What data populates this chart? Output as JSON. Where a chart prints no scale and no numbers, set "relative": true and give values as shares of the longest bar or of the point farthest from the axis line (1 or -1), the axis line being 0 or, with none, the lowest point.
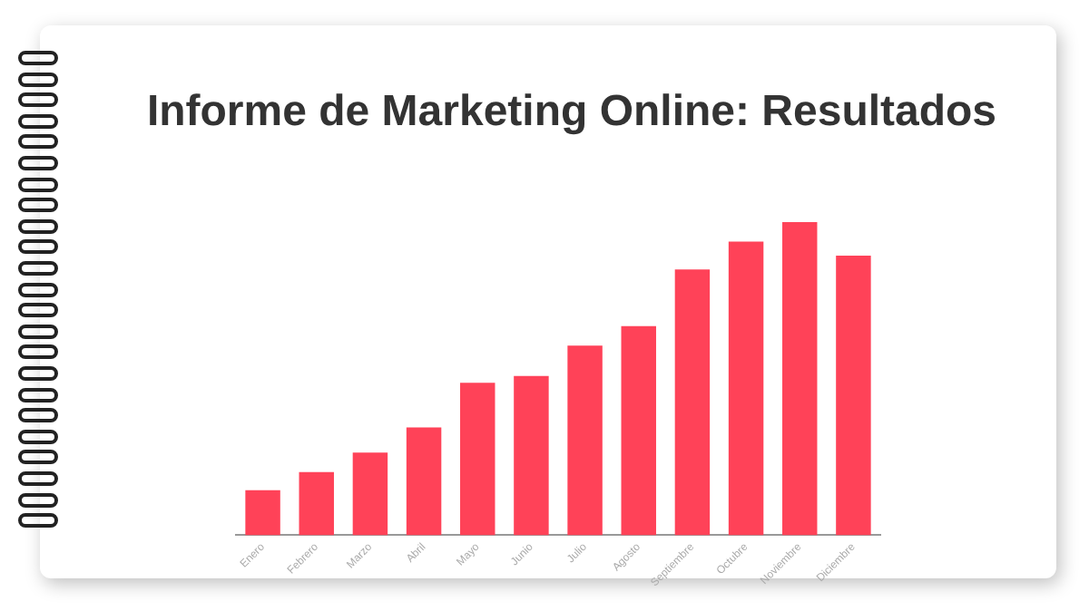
{
  "chart_data": {
    "type": "bar",
    "title": "Informe de Marketing Online: Resultados",
    "categories": [
      "Enero",
      "Febrero",
      "Marzo",
      "Abril",
      "Mayo",
      "Junio",
      "Julio",
      "Agosto",
      "Septiembre",
      "Octubre",
      "Noviembre",
      "Diciembre"
    ],
    "values": [
      0.144,
      0.202,
      0.264,
      0.344,
      0.487,
      0.509,
      0.606,
      0.668,
      0.849,
      0.938,
      1,
      0.893
    ],
    "color": "#ff4258",
    "relative": true
  }
}
